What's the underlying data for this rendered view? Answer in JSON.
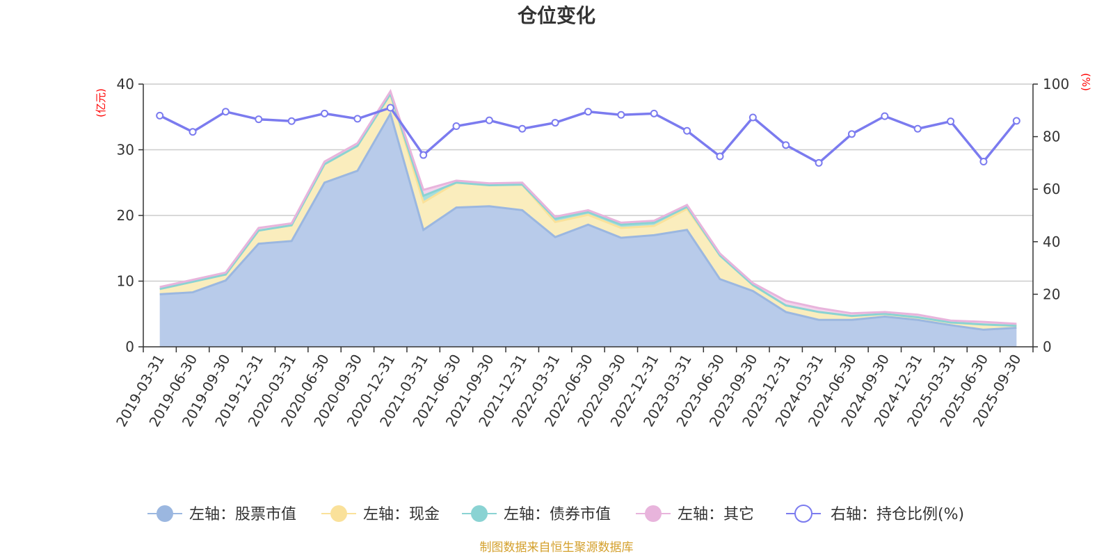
{
  "chart_data": {
    "type": "area",
    "title": "仓位变化",
    "left_unit": "(亿元)",
    "right_unit": "(%)",
    "left_ylim": [
      0,
      40
    ],
    "right_ylim": [
      0,
      100
    ],
    "left_ticks": [
      "0",
      "10",
      "20",
      "30",
      "40"
    ],
    "right_ticks": [
      "0",
      "20",
      "40",
      "60",
      "80",
      "100"
    ],
    "grid": true,
    "legend_position": "bottom",
    "categories": [
      "2019-03-31",
      "2019-06-30",
      "2019-09-30",
      "2019-12-31",
      "2020-03-31",
      "2020-06-30",
      "2020-09-30",
      "2020-12-31",
      "2021-03-31",
      "2021-06-30",
      "2021-09-30",
      "2021-12-31",
      "2022-03-31",
      "2022-06-30",
      "2022-09-30",
      "2022-12-31",
      "2023-03-31",
      "2023-06-30",
      "2023-09-30",
      "2023-12-31",
      "2024-03-31",
      "2024-06-30",
      "2024-09-30",
      "2024-12-31",
      "2025-03-31",
      "2025-06-30",
      "2025-09-30"
    ],
    "series": [
      {
        "name": "左轴：股票市值",
        "axis": "left",
        "color": "#9bb7e0",
        "fill": "#b8cbea",
        "values": [
          8.0,
          8.3,
          10.1,
          15.7,
          16.1,
          25.0,
          26.8,
          35.5,
          17.8,
          21.2,
          21.4,
          20.8,
          16.7,
          18.6,
          16.6,
          17.0,
          17.8,
          10.3,
          8.5,
          5.3,
          4.1,
          4.1,
          4.6,
          4.1,
          3.3,
          2.6,
          2.9
        ]
      },
      {
        "name": "左轴：现金",
        "axis": "left",
        "color": "#fae19a",
        "fill": "#faedbd",
        "values": [
          0.8,
          1.6,
          0.9,
          2.0,
          2.4,
          2.8,
          3.8,
          3.0,
          4.2,
          3.8,
          3.2,
          3.9,
          2.3,
          1.5,
          1.5,
          1.4,
          3.2,
          3.6,
          0.9,
          1.0,
          1.2,
          0.6,
          0.4,
          0.4,
          0.4,
          0.8,
          0.3
        ]
      },
      {
        "name": "左轴：债券市值",
        "axis": "left",
        "color": "#8ad3d3",
        "fill": "#a6dede",
        "values": [
          0.0,
          0.0,
          0.0,
          0.0,
          0.0,
          0.0,
          0.0,
          0.0,
          1.0,
          0.0,
          0.0,
          0.0,
          0.5,
          0.4,
          0.5,
          0.5,
          0.3,
          0.0,
          0.0,
          0.0,
          0.0,
          0.0,
          0.0,
          0.0,
          0.0,
          0.0,
          0.0
        ]
      },
      {
        "name": "左轴：其它",
        "axis": "left",
        "color": "#e8b4dc",
        "fill": "#f3d3ec",
        "values": [
          0.3,
          0.3,
          0.3,
          0.4,
          0.3,
          0.4,
          0.4,
          0.4,
          0.9,
          0.3,
          0.3,
          0.3,
          0.3,
          0.3,
          0.3,
          0.3,
          0.3,
          0.3,
          0.3,
          0.7,
          0.6,
          0.4,
          0.3,
          0.4,
          0.3,
          0.4,
          0.3
        ]
      },
      {
        "name": "右轴：持仓比例(%)",
        "axis": "right",
        "type": "line",
        "color": "#7b7bef",
        "values": [
          88.0,
          81.8,
          89.5,
          86.6,
          85.9,
          88.8,
          86.8,
          91.0,
          73.0,
          84.0,
          86.2,
          83.0,
          85.3,
          89.5,
          88.3,
          88.8,
          82.2,
          72.5,
          87.3,
          76.8,
          70.0,
          81.0,
          87.8,
          83.0,
          85.8,
          70.5,
          86.0
        ]
      }
    ]
  },
  "source": {
    "text": "制图数据来自恒生聚源数据库",
    "color": "#d4a02c"
  }
}
